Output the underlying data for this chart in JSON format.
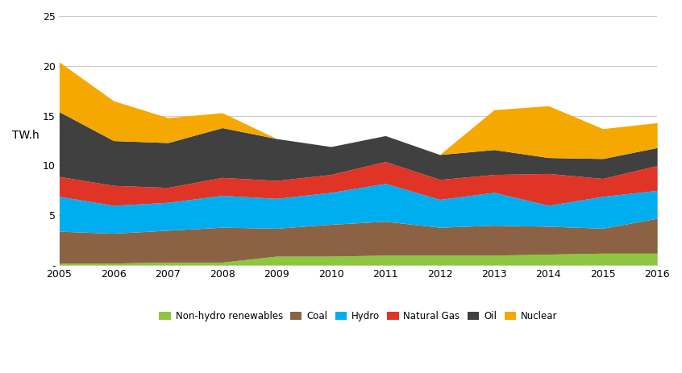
{
  "years": [
    2005,
    2006,
    2007,
    2008,
    2009,
    2010,
    2011,
    2012,
    2013,
    2014,
    2015,
    2016
  ],
  "non_hydro_renewables": [
    0.2,
    0.2,
    0.3,
    0.3,
    0.9,
    0.9,
    1.0,
    1.0,
    1.0,
    1.1,
    1.2,
    1.2
  ],
  "coal": [
    3.2,
    3.0,
    3.2,
    3.5,
    2.8,
    3.2,
    3.4,
    2.8,
    3.0,
    2.8,
    2.5,
    3.5
  ],
  "hydro": [
    3.5,
    2.8,
    2.8,
    3.2,
    3.0,
    3.2,
    3.8,
    2.8,
    3.3,
    2.1,
    3.2,
    2.8
  ],
  "natural_gas": [
    2.0,
    2.0,
    1.5,
    1.8,
    1.8,
    1.8,
    2.2,
    2.0,
    1.8,
    3.2,
    1.8,
    2.5
  ],
  "oil": [
    6.5,
    4.5,
    4.5,
    5.0,
    4.2,
    2.8,
    2.6,
    2.5,
    2.5,
    1.6,
    2.0,
    1.8
  ],
  "nuclear": [
    5.0,
    4.0,
    2.5,
    1.5,
    0.0,
    0.0,
    0.0,
    0.0,
    4.0,
    5.2,
    3.0,
    2.5
  ],
  "colors": {
    "non_hydro_renewables": "#8dc63f",
    "coal": "#8B6344",
    "hydro": "#00aeef",
    "natural_gas": "#e03426",
    "oil": "#404040",
    "nuclear": "#f5a800"
  },
  "labels": [
    "Non-hydro renewables",
    "Coal",
    "Hydro",
    "Natural Gas",
    "Oil",
    "Nuclear"
  ],
  "ylabel": "TW.h",
  "ylim": [
    0,
    25
  ],
  "yticks": [
    0,
    5,
    10,
    15,
    20,
    25
  ],
  "ytick_labels": [
    "-",
    "5",
    "10",
    "15",
    "20",
    "25"
  ],
  "background_color": "#ffffff",
  "grid_color": "#cccccc",
  "tick_fontsize": 9,
  "ylabel_fontsize": 10,
  "legend_fontsize": 8.5
}
